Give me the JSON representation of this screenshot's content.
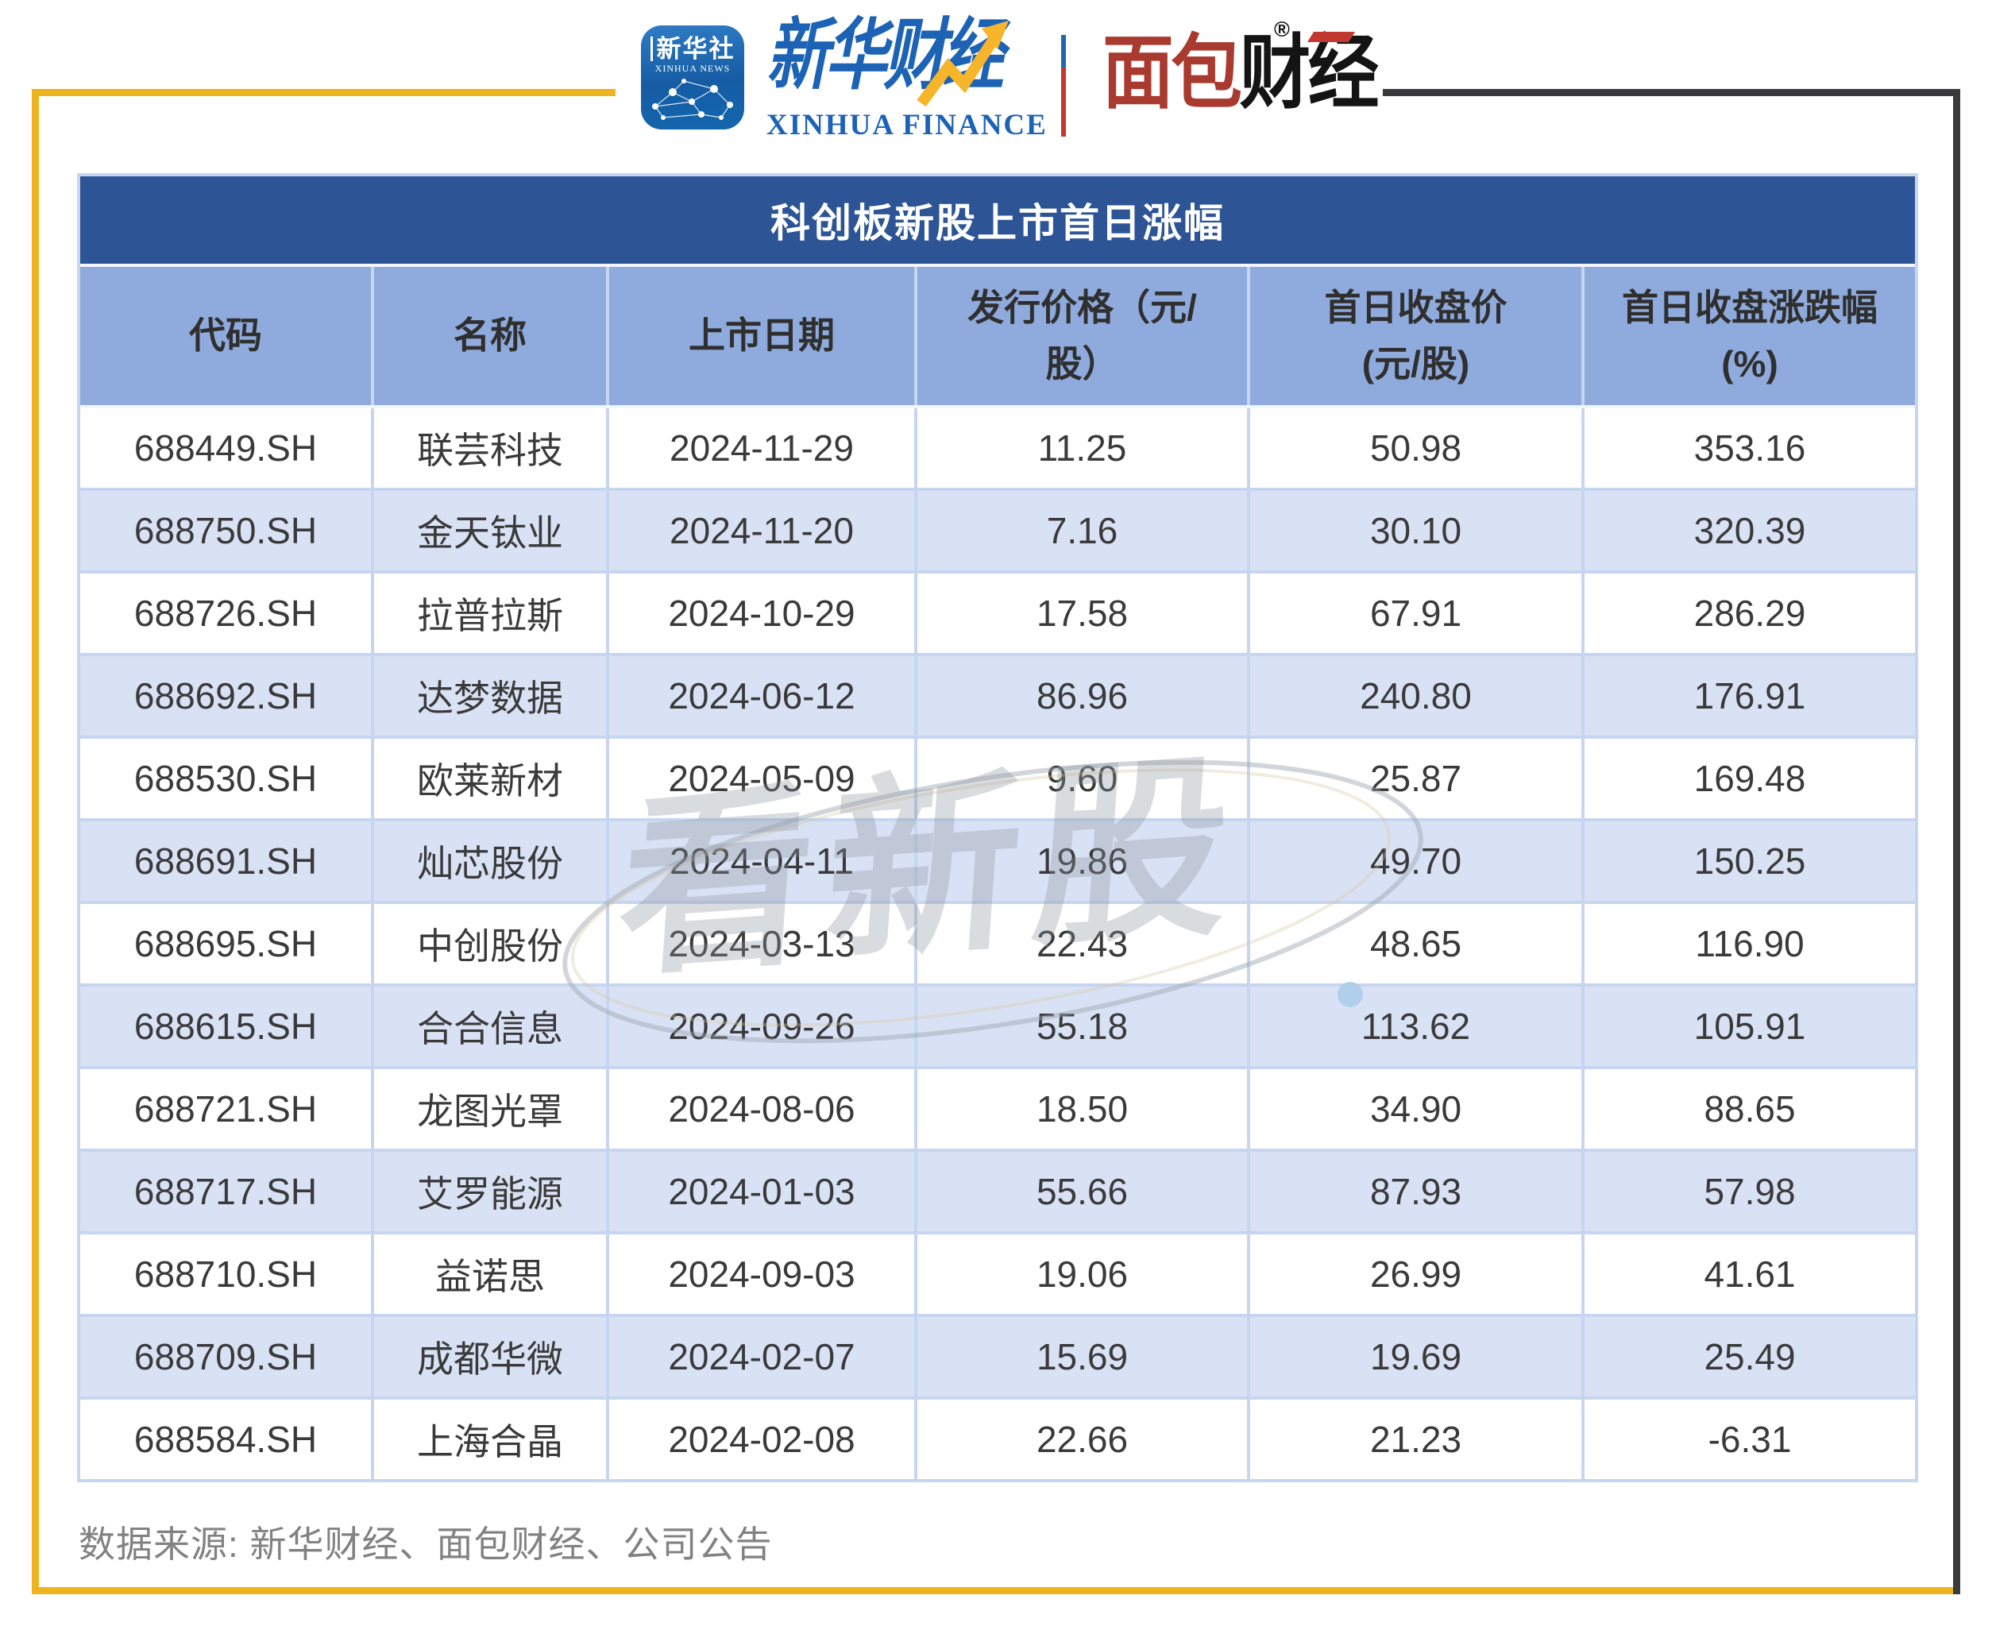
{
  "brand": {
    "xinhua_icon": {
      "cn": "新华社",
      "en": "XINHUA NEWS"
    },
    "xinhua_finance": {
      "cn": "新华财经",
      "en": "XINHUA FINANCE"
    },
    "mianbao": {
      "red_part": "面包",
      "black_part": "财经",
      "registered_mark": "®"
    }
  },
  "table": {
    "title": "科创板新股上市首日涨幅",
    "columns": [
      {
        "line1": "代码",
        "line2": ""
      },
      {
        "line1": "名称",
        "line2": ""
      },
      {
        "line1": "上市日期",
        "line2": ""
      },
      {
        "line1": "发行价格（元/",
        "line2": "股）"
      },
      {
        "line1": "首日收盘价",
        "line2": "(元/股)"
      },
      {
        "line1": "首日收盘涨跌幅",
        "line2": "(%)"
      }
    ],
    "rows": [
      [
        "688449.SH",
        "联芸科技",
        "2024-11-29",
        "11.25",
        "50.98",
        "353.16"
      ],
      [
        "688750.SH",
        "金天钛业",
        "2024-11-20",
        "7.16",
        "30.10",
        "320.39"
      ],
      [
        "688726.SH",
        "拉普拉斯",
        "2024-10-29",
        "17.58",
        "67.91",
        "286.29"
      ],
      [
        "688692.SH",
        "达梦数据",
        "2024-06-12",
        "86.96",
        "240.80",
        "176.91"
      ],
      [
        "688530.SH",
        "欧莱新材",
        "2024-05-09",
        "9.60",
        "25.87",
        "169.48"
      ],
      [
        "688691.SH",
        "灿芯股份",
        "2024-04-11",
        "19.86",
        "49.70",
        "150.25"
      ],
      [
        "688695.SH",
        "中创股份",
        "2024-03-13",
        "22.43",
        "48.65",
        "116.90"
      ],
      [
        "688615.SH",
        "合合信息",
        "2024-09-26",
        "55.18",
        "113.62",
        "105.91"
      ],
      [
        "688721.SH",
        "龙图光罩",
        "2024-08-06",
        "18.50",
        "34.90",
        "88.65"
      ],
      [
        "688717.SH",
        "艾罗能源",
        "2024-01-03",
        "55.66",
        "87.93",
        "57.98"
      ],
      [
        "688710.SH",
        "益诺思",
        "2024-09-03",
        "19.06",
        "26.99",
        "41.61"
      ],
      [
        "688709.SH",
        "成都华微",
        "2024-02-07",
        "15.69",
        "19.69",
        "25.49"
      ],
      [
        "688584.SH",
        "上海合晶",
        "2024-02-08",
        "22.66",
        "21.23",
        "-6.31"
      ]
    ]
  },
  "chart_data": {
    "type": "table",
    "title": "科创板新股上市首日涨幅",
    "columns": [
      "代码",
      "名称",
      "上市日期",
      "发行价格（元/股）",
      "首日收盘价（元/股）",
      "首日收盘涨跌幅（%）"
    ],
    "rows": [
      [
        "688449.SH",
        "联芸科技",
        "2024-11-29",
        11.25,
        50.98,
        353.16
      ],
      [
        "688750.SH",
        "金天钛业",
        "2024-11-20",
        7.16,
        30.1,
        320.39
      ],
      [
        "688726.SH",
        "拉普拉斯",
        "2024-10-29",
        17.58,
        67.91,
        286.29
      ],
      [
        "688692.SH",
        "达梦数据",
        "2024-06-12",
        86.96,
        240.8,
        176.91
      ],
      [
        "688530.SH",
        "欧莱新材",
        "2024-05-09",
        9.6,
        25.87,
        169.48
      ],
      [
        "688691.SH",
        "灿芯股份",
        "2024-04-11",
        19.86,
        49.7,
        150.25
      ],
      [
        "688695.SH",
        "中创股份",
        "2024-03-13",
        22.43,
        48.65,
        116.9
      ],
      [
        "688615.SH",
        "合合信息",
        "2024-09-26",
        55.18,
        113.62,
        105.91
      ],
      [
        "688721.SH",
        "龙图光罩",
        "2024-08-06",
        18.5,
        34.9,
        88.65
      ],
      [
        "688717.SH",
        "艾罗能源",
        "2024-01-03",
        55.66,
        87.93,
        57.98
      ],
      [
        "688710.SH",
        "益诺思",
        "2024-09-03",
        19.06,
        26.99,
        41.61
      ],
      [
        "688709.SH",
        "成都华微",
        "2024-02-07",
        15.69,
        19.69,
        25.49
      ],
      [
        "688584.SH",
        "上海合晶",
        "2024-02-08",
        22.66,
        21.23,
        -6.31
      ]
    ],
    "source_note": "数据来源: 新华财经、面包财经、公司公告"
  },
  "watermark": {
    "text": "看新股"
  },
  "footer": {
    "source": "数据来源: 新华财经、面包财经、公司公告"
  },
  "colors": {
    "accent_yellow": "#EDB420",
    "frame_dark": "#3A3A3C",
    "title_bg": "#2D5596",
    "header_bg": "#8FAADC",
    "alt_row_bg": "#D9E2F5",
    "grid_line": "#C7D5F0",
    "brand_blue": "#1D63B5",
    "brand_red": "#A93A30",
    "text_dark": "#3A3A3A",
    "source_gray": "#828282"
  }
}
